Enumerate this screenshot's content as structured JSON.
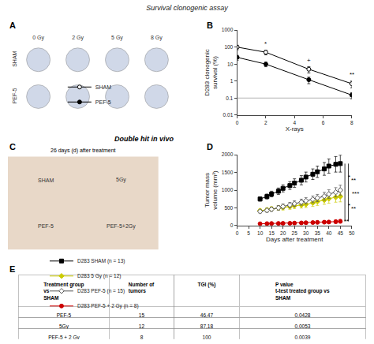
{
  "title": "Survival clonogenic assay",
  "chart_data": [
    {
      "type": "image_grid",
      "title": "A",
      "categories": [
        "0 Gy",
        "2 Gy",
        "5 Gy",
        "8 Gy"
      ],
      "rows": [
        "SHAM",
        "PEF-5"
      ]
    },
    {
      "type": "line",
      "title": "B",
      "xlabel": "X-rays",
      "ylabel": "D283 clonogenic\nsurvival (%)",
      "log": "y",
      "grid": false,
      "legend": "lower left",
      "xlim": [
        0,
        8
      ],
      "ylim": [
        0.01,
        1000
      ],
      "xticks": [
        0,
        2,
        4,
        6,
        8
      ],
      "yticks": [
        0.01,
        0.1,
        1,
        10,
        100,
        1000
      ],
      "x": [
        0,
        2,
        5,
        8
      ],
      "series": [
        {
          "name": "SHAM",
          "color": "#000000",
          "marker": "open circle",
          "values": [
            100,
            50,
            5,
            0.7
          ],
          "errors": [
            30,
            15,
            2,
            0.3
          ]
        },
        {
          "name": "PEF-5",
          "color": "#000000",
          "marker": "circle",
          "values": [
            25,
            10,
            1.2,
            0.15
          ],
          "errors": [
            8,
            3,
            0.5,
            0.06
          ]
        }
      ],
      "reference_line": 0.1,
      "annotations": [
        {
          "x": 2,
          "y": 80,
          "text": "*"
        },
        {
          "x": 5,
          "y": 8,
          "text": "+"
        },
        {
          "x": 8,
          "y": 1.2,
          "text": "**"
        }
      ]
    },
    {
      "type": "image_grid",
      "title": "C",
      "subtitle": "Double hit in vivo",
      "annotations": [
        {
          "text": "26 days (d) after treatment"
        }
      ],
      "categories": [
        "SHAM",
        "5Gy",
        "PEF-5",
        "PEF-5+2Gy"
      ]
    },
    {
      "type": "line",
      "title": "D",
      "xlabel": "Days after treatment",
      "ylabel": "Tumor mass\nvolume (mm³)",
      "grid": false,
      "legend": "bottom",
      "xlim": [
        0,
        50
      ],
      "ylim": [
        0,
        2000
      ],
      "xticks": [
        0,
        5,
        10,
        15,
        20,
        25,
        30,
        35,
        40,
        45,
        50
      ],
      "yticks": [
        0,
        500,
        1000,
        1500,
        2000
      ],
      "x": [
        10,
        13,
        15,
        18,
        20,
        23,
        25,
        28,
        30,
        33,
        35,
        38,
        40,
        43,
        45
      ],
      "series": [
        {
          "name": "D283 SHAM (n = 13)",
          "color": "#000000",
          "marker": "square",
          "values": [
            750,
            820,
            890,
            970,
            1050,
            1130,
            1200,
            1280,
            1370,
            1450,
            1520,
            1600,
            1680,
            1730,
            1750
          ],
          "errors": [
            60,
            70,
            80,
            90,
            100,
            110,
            120,
            130,
            140,
            150,
            160,
            180,
            200,
            220,
            240
          ]
        },
        {
          "name": "D283 5 Gy (n = 12)",
          "color": "#cccc00",
          "marker": "diamond",
          "values": [
            420,
            445,
            470,
            495,
            510,
            535,
            560,
            580,
            600,
            640,
            680,
            720,
            760,
            800,
            820
          ],
          "errors": [
            50,
            55,
            60,
            65,
            70,
            75,
            80,
            85,
            90,
            100,
            110,
            120,
            130,
            140,
            150
          ]
        },
        {
          "name": "D283 PEF-5 (n = 15)",
          "color": "#555555",
          "marker": "open diamond",
          "values": [
            400,
            430,
            460,
            500,
            540,
            580,
            620,
            660,
            700,
            740,
            780,
            830,
            890,
            940,
            1000
          ],
          "errors": [
            50,
            55,
            60,
            65,
            70,
            75,
            80,
            85,
            90,
            95,
            100,
            110,
            120,
            130,
            140
          ]
        },
        {
          "name": "D283 PEF-5 + 2 Gy (n = 8)",
          "color": "#cc0000",
          "marker": "circle",
          "values": [
            50,
            55,
            58,
            60,
            62,
            65,
            70,
            75,
            80,
            85,
            90,
            95,
            100,
            110,
            120
          ],
          "errors": [
            15,
            18,
            20,
            22,
            24,
            26,
            28,
            30,
            32,
            34,
            36,
            38,
            40,
            45,
            50
          ]
        }
      ],
      "brackets": [
        {
          "x": 47,
          "y": [
            1000,
            1750
          ]
        },
        {
          "x": 48.5,
          "y": [
            820,
            1750
          ]
        },
        {
          "x": 47,
          "y": [
            120,
            1000
          ]
        },
        {
          "x": 48.5,
          "y": [
            120,
            820
          ]
        }
      ],
      "annotations": [
        {
          "x": 47.5,
          "y": 1375,
          "text": "*"
        },
        {
          "x": 49,
          "y": 1285,
          "text": "**"
        },
        {
          "x": 47.5,
          "y": 560,
          "text": "*"
        },
        {
          "x": 49,
          "y": 470,
          "text": "**"
        },
        {
          "x": 46,
          "y": 120,
          "text": "**"
        },
        {
          "x": 49.5,
          "y": 900,
          "text": "***"
        }
      ]
    },
    {
      "type": "table",
      "title": "E",
      "columns": [
        "Treatment group\nvs\nSHAM",
        "Number of\ntumors",
        "TGI (%)",
        "P value\nt-test treated group vs\nSHAM"
      ],
      "rows": [
        [
          "PEF-5",
          "15",
          "46,47",
          "0,0428"
        ],
        [
          "5Gy",
          "12",
          "87,18",
          "0,0053"
        ],
        [
          "PEF-5 + 2 Gy",
          "8",
          "100",
          "0,0039"
        ]
      ]
    }
  ]
}
